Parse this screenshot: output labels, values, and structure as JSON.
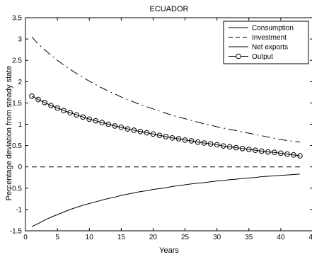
{
  "chart_data": {
    "type": "line",
    "title": "ECUADOR",
    "xlabel": "Years",
    "ylabel": "Percentage deviation from steady state",
    "xlim": [
      0,
      45
    ],
    "ylim": [
      -1.5,
      3.5
    ],
    "grid": false,
    "legend_position": "top-right",
    "x_ticks": [
      "0",
      "5",
      "10",
      "15",
      "20",
      "25",
      "30",
      "35",
      "40",
      "45"
    ],
    "y_ticks": [
      "-1.5",
      "-1",
      "-0.5",
      "0",
      "0.5",
      "1",
      "1.5",
      "2",
      "2.5",
      "3",
      "3.5"
    ],
    "x": [
      1,
      2,
      3,
      4,
      5,
      6,
      7,
      8,
      9,
      10,
      11,
      12,
      13,
      14,
      15,
      16,
      17,
      18,
      19,
      20,
      21,
      22,
      23,
      24,
      25,
      26,
      27,
      28,
      29,
      30,
      31,
      32,
      33,
      34,
      35,
      36,
      37,
      38,
      39,
      40,
      41,
      42,
      43
    ],
    "series": [
      {
        "name": "Consumption",
        "style": "solid",
        "color": "#000000",
        "values": [
          0.0,
          0.0,
          0.0,
          0.0,
          0.0,
          0.0,
          0.0,
          0.0,
          0.0,
          0.0,
          0.0,
          0.0,
          0.0,
          0.0,
          0.0,
          0.0,
          0.0,
          0.0,
          0.0,
          0.0,
          0.0,
          0.0,
          0.0,
          0.0,
          0.0,
          0.0,
          0.0,
          0.0,
          0.0,
          0.0,
          0.0,
          0.0,
          0.0,
          0.0,
          0.0,
          0.0,
          0.0,
          0.0,
          0.0,
          0.0,
          0.0,
          0.0,
          0.0
        ]
      },
      {
        "name": "Investment",
        "style": "dashdot",
        "color": "#000000",
        "values": [
          3.05,
          2.88,
          2.75,
          2.62,
          2.5,
          2.39,
          2.29,
          2.19,
          2.1,
          2.01,
          1.93,
          1.85,
          1.78,
          1.71,
          1.64,
          1.58,
          1.52,
          1.46,
          1.41,
          1.36,
          1.31,
          1.26,
          1.21,
          1.17,
          1.13,
          1.09,
          1.05,
          1.01,
          0.98,
          0.94,
          0.91,
          0.88,
          0.85,
          0.82,
          0.79,
          0.76,
          0.73,
          0.7,
          0.67,
          0.64,
          0.62,
          0.6,
          0.58
        ]
      },
      {
        "name": "Net exports",
        "style": "solid",
        "color": "#000000",
        "values": [
          -1.4,
          -1.33,
          -1.25,
          -1.18,
          -1.12,
          -1.06,
          -1.0,
          -0.95,
          -0.9,
          -0.86,
          -0.82,
          -0.78,
          -0.74,
          -0.71,
          -0.67,
          -0.64,
          -0.61,
          -0.58,
          -0.56,
          -0.53,
          -0.51,
          -0.49,
          -0.46,
          -0.44,
          -0.42,
          -0.4,
          -0.38,
          -0.37,
          -0.35,
          -0.33,
          -0.32,
          -0.3,
          -0.29,
          -0.27,
          -0.26,
          -0.25,
          -0.23,
          -0.22,
          -0.21,
          -0.2,
          -0.19,
          -0.18,
          -0.17
        ]
      },
      {
        "name": "Output",
        "style": "solid-circles",
        "color": "#000000",
        "values": [
          1.66,
          1.58,
          1.51,
          1.44,
          1.38,
          1.32,
          1.27,
          1.22,
          1.17,
          1.12,
          1.08,
          1.04,
          1.0,
          0.96,
          0.93,
          0.89,
          0.86,
          0.83,
          0.8,
          0.77,
          0.74,
          0.71,
          0.68,
          0.66,
          0.63,
          0.61,
          0.58,
          0.56,
          0.54,
          0.52,
          0.49,
          0.47,
          0.45,
          0.43,
          0.41,
          0.39,
          0.37,
          0.35,
          0.34,
          0.32,
          0.3,
          0.28,
          0.26
        ]
      }
    ]
  }
}
